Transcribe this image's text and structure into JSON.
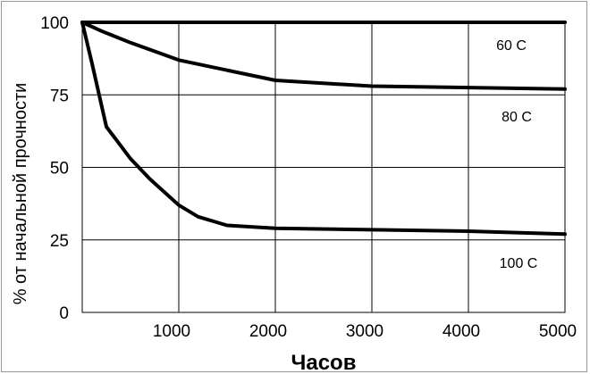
{
  "chart_data": {
    "type": "line",
    "title": "",
    "xlabel": "Часов",
    "ylabel": "% от начальной прочности",
    "xlim": [
      0,
      5000
    ],
    "ylim": [
      0,
      100
    ],
    "xticks": [
      1000,
      2000,
      3000,
      4000,
      5000
    ],
    "yticks": [
      0,
      25,
      50,
      75,
      100
    ],
    "grid": true,
    "colors": {
      "line": "#000000",
      "grid": "#000000",
      "background": "#ffffff"
    },
    "series": [
      {
        "name": "60 C",
        "x": [
          0,
          5000
        ],
        "y": [
          100,
          100
        ]
      },
      {
        "name": "80 C",
        "x": [
          0,
          200,
          500,
          1000,
          2000,
          3000,
          4000,
          5000
        ],
        "y": [
          100,
          97,
          93,
          87,
          80,
          78,
          77.5,
          77
        ]
      },
      {
        "name": "100 C",
        "x": [
          0,
          100,
          250,
          500,
          700,
          1000,
          1200,
          1500,
          2000,
          3000,
          4000,
          5000
        ],
        "y": [
          100,
          86,
          64,
          53,
          46,
          37,
          33,
          30,
          29,
          28.5,
          28,
          27
        ]
      }
    ],
    "annotations": [
      "60 C",
      "80 C",
      "100 C"
    ]
  }
}
